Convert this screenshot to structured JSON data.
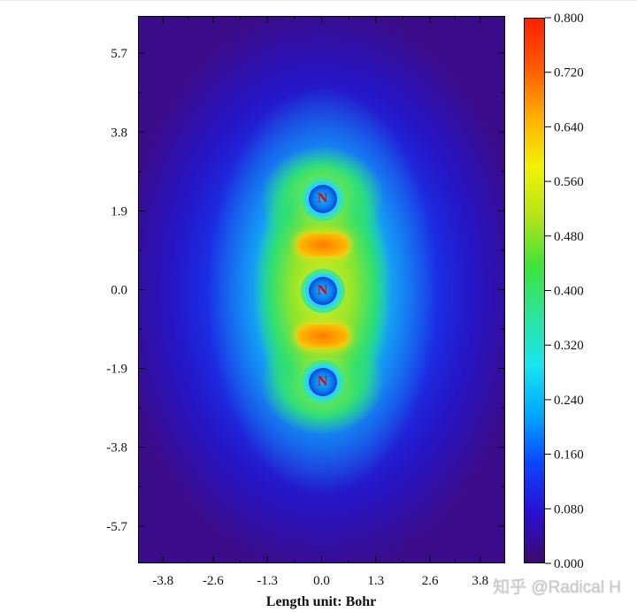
{
  "chart_data": {
    "type": "heatmap",
    "title": "",
    "xlabel": "Length unit: Bohr",
    "ylabel": "",
    "xlim": [
      -4.4,
      4.4
    ],
    "ylim": [
      -6.6,
      6.6
    ],
    "x_ticks": [
      -3.8,
      -2.6,
      -1.3,
      0.0,
      1.3,
      2.6,
      3.8
    ],
    "x_tick_labels": [
      "-3.8",
      "-2.6",
      "-1.3",
      "0.0",
      "1.3",
      "2.6",
      "3.8"
    ],
    "y_ticks": [
      5.7,
      3.8,
      1.9,
      0.0,
      -1.9,
      -3.8,
      -5.7
    ],
    "y_tick_labels": [
      "5.7",
      "3.8",
      "1.9",
      "0.0",
      "-1.9",
      "-3.8",
      "-5.7"
    ],
    "atoms": [
      {
        "label": "N",
        "x": 0.0,
        "y": 2.2
      },
      {
        "label": "N",
        "x": 0.0,
        "y": 0.0
      },
      {
        "label": "N",
        "x": 0.0,
        "y": -2.2
      }
    ],
    "bond_maxima": [
      {
        "x": 0.0,
        "y": 1.1,
        "value": 0.68
      },
      {
        "x": 0.0,
        "y": -1.1,
        "value": 0.68
      }
    ],
    "colorbar": {
      "min": 0.0,
      "max": 0.8,
      "ticks": [
        0.8,
        0.72,
        0.64,
        0.56,
        0.48,
        0.4,
        0.32,
        0.24,
        0.16,
        0.08,
        0.0
      ],
      "tick_labels": [
        "0.800",
        "0.720",
        "0.640",
        "0.560",
        "0.480",
        "0.400",
        "0.320",
        "0.240",
        "0.160",
        "0.080",
        "0.000"
      ],
      "colormap": [
        "#3d0a6b",
        "#2a0fd0",
        "#0b45ff",
        "#00a8ff",
        "#19e6ee",
        "#2ee39a",
        "#3ee33a",
        "#b5e319",
        "#f2f205",
        "#ffb000",
        "#ff5a00",
        "#ff2000"
      ]
    },
    "grid": false,
    "legend": "none"
  },
  "watermark": "知乎 @Radical H"
}
